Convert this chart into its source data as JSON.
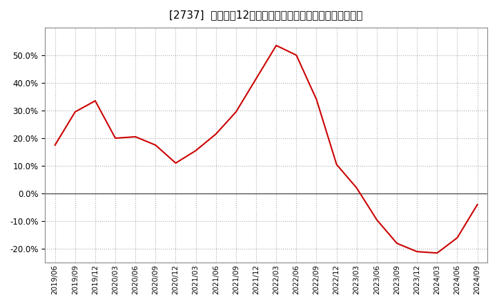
{
  "title": "[2737]  売上高の12か月移動合計の対前年同期増減率の推移",
  "line_color": "#cc0000",
  "background_color": "#ffffff",
  "plot_background_color": "#ffffff",
  "grid_color": "#aaaaaa",
  "ylim": [
    -0.25,
    0.6
  ],
  "yticks": [
    -0.2,
    -0.1,
    0.0,
    0.1,
    0.2,
    0.3,
    0.4,
    0.5
  ],
  "dates": [
    "2019/06",
    "2019/09",
    "2019/12",
    "2020/03",
    "2020/06",
    "2020/09",
    "2020/12",
    "2021/03",
    "2021/06",
    "2021/09",
    "2021/12",
    "2022/03",
    "2022/06",
    "2022/09",
    "2022/12",
    "2023/03",
    "2023/06",
    "2023/09",
    "2023/12",
    "2024/03",
    "2024/06",
    "2024/09"
  ],
  "values": [
    0.175,
    0.295,
    0.335,
    0.2,
    0.205,
    0.175,
    0.11,
    0.155,
    0.215,
    0.295,
    0.415,
    0.535,
    0.5,
    0.34,
    0.105,
    0.02,
    -0.095,
    -0.18,
    -0.21,
    -0.215,
    -0.16,
    -0.04
  ],
  "xtick_labels": [
    "2019/06",
    "2019/09",
    "2019/12",
    "2020/03",
    "2020/06",
    "2020/09",
    "2020/12",
    "2021/03",
    "2021/06",
    "2021/09",
    "2021/12",
    "2022/03",
    "2022/06",
    "2022/09",
    "2022/12",
    "2023/03",
    "2023/06",
    "2023/09",
    "2023/12",
    "2024/03",
    "2024/06",
    "2024/09"
  ]
}
